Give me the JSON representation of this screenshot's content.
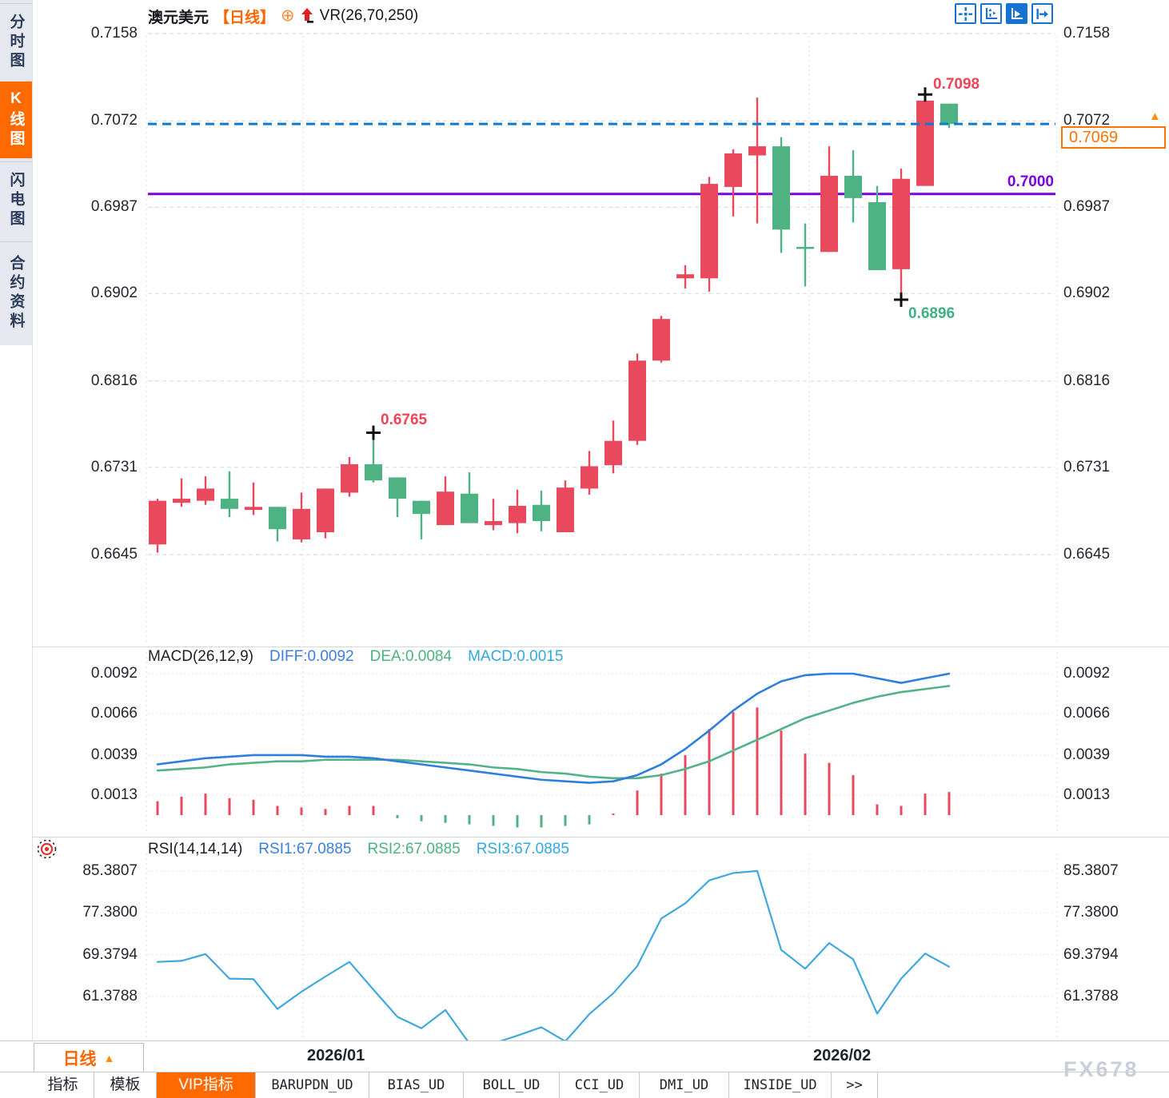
{
  "title": {
    "symbol": "澳元美元",
    "period": "【日线】",
    "vr": "VR(26,70,250)"
  },
  "sidebar": {
    "items": [
      {
        "label": "分时图",
        "active": false
      },
      {
        "label": "K线图",
        "active": true
      },
      {
        "label": "闪电图",
        "active": false
      },
      {
        "label": "合约资料",
        "active": false
      }
    ]
  },
  "toolbar": {
    "icons": [
      "pan-crosshair-icon",
      "fit-axes-icon",
      "auto-scale-icon",
      "go-latest-icon"
    ]
  },
  "annotations": {
    "high": "0.7098",
    "low": "0.6896",
    "mid": "0.6765",
    "level": "0.7000",
    "current": "0.7069",
    "current_marker": "▲"
  },
  "main_axis": [
    "0.7158",
    "0.7072",
    "0.6987",
    "0.6902",
    "0.6816",
    "0.6731",
    "0.6645"
  ],
  "macd": {
    "header": "MACD(26,12,9)",
    "diff": "DIFF:0.0092",
    "dea": "DEA:0.0084",
    "macd": "MACD:0.0015",
    "axis": [
      "0.0092",
      "0.0066",
      "0.0039",
      "0.0013"
    ]
  },
  "rsi": {
    "header": "RSI(14,14,14)",
    "r1": "RSI1:67.0885",
    "r2": "RSI2:67.0885",
    "r3": "RSI3:67.0885",
    "axis": [
      "85.3807",
      "77.3800",
      "69.3794",
      "61.3788"
    ]
  },
  "timeline": {
    "period": "日线",
    "arrow": "▲",
    "dates": [
      "2026/01",
      "2026/02"
    ]
  },
  "tabs": [
    {
      "label": "指标",
      "active": false,
      "mono": false
    },
    {
      "label": "模板",
      "active": false,
      "mono": false
    },
    {
      "label": "VIP指标",
      "active": true,
      "mono": false
    },
    {
      "label": "BARUPDN_UD",
      "active": false,
      "mono": true
    },
    {
      "label": "BIAS_UD",
      "active": false,
      "mono": true
    },
    {
      "label": "BOLL_UD",
      "active": false,
      "mono": true
    },
    {
      "label": "CCI_UD",
      "active": false,
      "mono": true
    },
    {
      "label": "DMI_UD",
      "active": false,
      "mono": true
    },
    {
      "label": "INSIDE_UD",
      "active": false,
      "mono": true
    },
    {
      "label": ">>",
      "active": false,
      "mono": true
    }
  ],
  "watermark": "FX678",
  "colors": {
    "up": "#e8495c",
    "down": "#4fb283",
    "accent": "#ff6a00",
    "level_line": "#7d00df",
    "current_line": "#0d7ad6",
    "diff_line": "#2e7fdc",
    "dea_line": "#53b287",
    "rsi_line": "#3fa8dc",
    "grid": "#e2e2e5",
    "toolbar_blue": "#1673d2"
  },
  "chart_data": [
    {
      "type": "candlestick",
      "title": "澳元美元 日线 (AUD/USD daily)",
      "x_dates": [
        "2026/01",
        "2026/02"
      ],
      "ylim": [
        0.6645,
        0.7158
      ],
      "gridlines": [
        0.7158,
        0.7072,
        0.6987,
        0.6902,
        0.6816,
        0.6731,
        0.6645
      ],
      "horizontal_level": 0.7,
      "current_price": 0.7069,
      "marked_high": 0.7098,
      "marked_low": 0.6896,
      "marked_mid_high": 0.6765,
      "candles": [
        {
          "o": 0.6655,
          "h": 0.67,
          "l": 0.6647,
          "c": 0.6698
        },
        {
          "o": 0.6696,
          "h": 0.672,
          "l": 0.6692,
          "c": 0.67
        },
        {
          "o": 0.6698,
          "h": 0.6722,
          "l": 0.6694,
          "c": 0.671
        },
        {
          "o": 0.67,
          "h": 0.6727,
          "l": 0.6682,
          "c": 0.669
        },
        {
          "o": 0.6689,
          "h": 0.6716,
          "l": 0.6684,
          "c": 0.6692
        },
        {
          "o": 0.6692,
          "h": 0.6692,
          "l": 0.6658,
          "c": 0.667
        },
        {
          "o": 0.666,
          "h": 0.6706,
          "l": 0.6657,
          "c": 0.669
        },
        {
          "o": 0.6667,
          "h": 0.671,
          "l": 0.6661,
          "c": 0.671
        },
        {
          "o": 0.6706,
          "h": 0.6741,
          "l": 0.6702,
          "c": 0.6734
        },
        {
          "o": 0.6734,
          "h": 0.6765,
          "l": 0.6716,
          "c": 0.6718
        },
        {
          "o": 0.6721,
          "h": 0.6721,
          "l": 0.6682,
          "c": 0.67
        },
        {
          "o": 0.6698,
          "h": 0.6698,
          "l": 0.666,
          "c": 0.6685
        },
        {
          "o": 0.6674,
          "h": 0.6722,
          "l": 0.6674,
          "c": 0.6707
        },
        {
          "o": 0.6705,
          "h": 0.6726,
          "l": 0.6676,
          "c": 0.6676
        },
        {
          "o": 0.6674,
          "h": 0.67,
          "l": 0.6669,
          "c": 0.6678
        },
        {
          "o": 0.6676,
          "h": 0.6709,
          "l": 0.6666,
          "c": 0.6693
        },
        {
          "o": 0.6694,
          "h": 0.6708,
          "l": 0.6668,
          "c": 0.6678
        },
        {
          "o": 0.6667,
          "h": 0.6718,
          "l": 0.6667,
          "c": 0.6711
        },
        {
          "o": 0.671,
          "h": 0.6747,
          "l": 0.6704,
          "c": 0.6732
        },
        {
          "o": 0.6733,
          "h": 0.6777,
          "l": 0.6725,
          "c": 0.6757
        },
        {
          "o": 0.6757,
          "h": 0.6843,
          "l": 0.6753,
          "c": 0.6836
        },
        {
          "o": 0.6836,
          "h": 0.688,
          "l": 0.6834,
          "c": 0.6877
        },
        {
          "o": 0.6917,
          "h": 0.693,
          "l": 0.6907,
          "c": 0.6921
        },
        {
          "o": 0.6917,
          "h": 0.7017,
          "l": 0.6904,
          "c": 0.701
        },
        {
          "o": 0.7007,
          "h": 0.7044,
          "l": 0.6978,
          "c": 0.704
        },
        {
          "o": 0.7038,
          "h": 0.7095,
          "l": 0.6971,
          "c": 0.7047
        },
        {
          "o": 0.7047,
          "h": 0.7056,
          "l": 0.6942,
          "c": 0.6965
        },
        {
          "o": 0.6948,
          "h": 0.6971,
          "l": 0.6909,
          "c": 0.6946
        },
        {
          "o": 0.6943,
          "h": 0.7047,
          "l": 0.6943,
          "c": 0.7018
        },
        {
          "o": 0.7018,
          "h": 0.7043,
          "l": 0.6972,
          "c": 0.6996
        },
        {
          "o": 0.6992,
          "h": 0.7008,
          "l": 0.6925,
          "c": 0.6925
        },
        {
          "o": 0.6926,
          "h": 0.7025,
          "l": 0.6896,
          "c": 0.7015
        },
        {
          "o": 0.7008,
          "h": 0.7098,
          "l": 0.7008,
          "c": 0.7092
        },
        {
          "o": 0.7089,
          "h": 0.7089,
          "l": 0.7065,
          "c": 0.7069
        }
      ],
      "cross_markers": [
        {
          "index": 9,
          "at": "high"
        },
        {
          "index": 31,
          "at": "low"
        },
        {
          "index": 32,
          "at": "high"
        }
      ]
    },
    {
      "type": "bar",
      "name": "MACD(26,12,9)",
      "gridlines": [
        0.0092,
        0.0066,
        0.0039,
        0.0013
      ],
      "diff": [
        0.0033,
        0.0035,
        0.0037,
        0.0038,
        0.0039,
        0.0039,
        0.0039,
        0.0038,
        0.0038,
        0.0037,
        0.0035,
        0.0033,
        0.0031,
        0.0029,
        0.0027,
        0.0025,
        0.0023,
        0.0022,
        0.0021,
        0.0022,
        0.0026,
        0.0033,
        0.0043,
        0.0055,
        0.0068,
        0.0079,
        0.0087,
        0.0091,
        0.0092,
        0.0092,
        0.0089,
        0.0086,
        0.0089,
        0.0092
      ],
      "dea": [
        0.0029,
        0.003,
        0.0031,
        0.0033,
        0.0034,
        0.0035,
        0.0035,
        0.0036,
        0.0036,
        0.0036,
        0.0036,
        0.0035,
        0.0034,
        0.0033,
        0.0031,
        0.003,
        0.0028,
        0.0027,
        0.0025,
        0.0024,
        0.0024,
        0.0026,
        0.003,
        0.0035,
        0.0042,
        0.0049,
        0.0056,
        0.0063,
        0.0068,
        0.0073,
        0.0077,
        0.008,
        0.0082,
        0.0084
      ],
      "histogram": [
        0.0009,
        0.0012,
        0.0014,
        0.0011,
        0.001,
        0.0006,
        0.0005,
        0.0004,
        0.0006,
        0.0006,
        -0.0002,
        -0.0004,
        -0.0005,
        -0.0006,
        -0.0007,
        -0.0008,
        -0.0008,
        -0.0007,
        -0.0006,
        0.0001,
        0.0016,
        0.0027,
        0.0039,
        0.0056,
        0.0067,
        0.007,
        0.0055,
        0.004,
        0.0034,
        0.0026,
        0.0007,
        0.0006,
        0.0014,
        0.0015
      ],
      "final": {
        "DIFF": 0.0092,
        "DEA": 0.0084,
        "MACD": 0.0015
      }
    },
    {
      "type": "line",
      "name": "RSI(14,14,14)",
      "gridlines": [
        85.3807,
        77.38,
        69.3794,
        61.3788
      ],
      "values": [
        68.0,
        68.2,
        69.5,
        64.8,
        64.7,
        59.0,
        62.3,
        65.2,
        68.0,
        62.7,
        57.5,
        55.3,
        58.8,
        52.4,
        52.4,
        53.9,
        55.5,
        52.8,
        58.0,
        62.0,
        67.2,
        76.3,
        79.2,
        83.6,
        85.0,
        85.4,
        70.3,
        66.7,
        71.6,
        68.5,
        58.1,
        64.8,
        69.6,
        67.0885
      ],
      "final": {
        "RSI1": 67.0885,
        "RSI2": 67.0885,
        "RSI3": 67.0885
      }
    }
  ]
}
